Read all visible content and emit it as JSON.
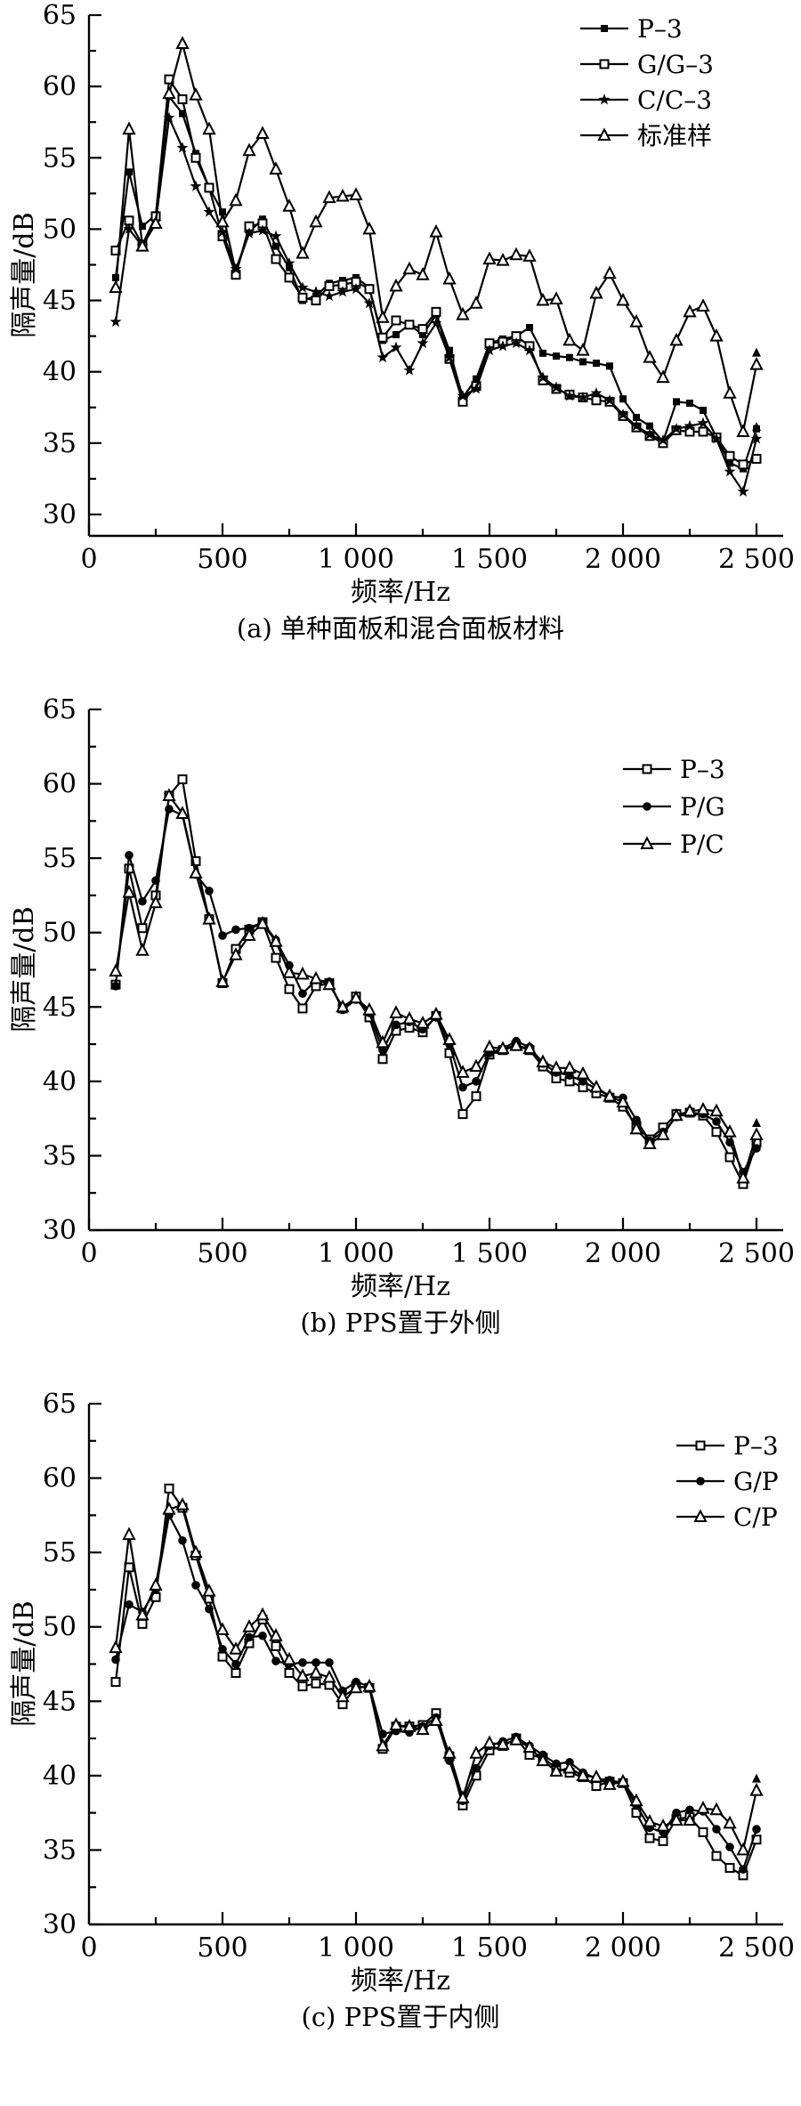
{
  "figure": {
    "ylabel": "隔声量/dB",
    "xlabel": "频率/Hz"
  },
  "chart_data": [
    {
      "id": "a",
      "type": "line",
      "title": "(a) 单种面板和混合面板材料",
      "xlabel": "频率/Hz",
      "ylabel": "隔声量/dB",
      "xlim": [
        0,
        2600
      ],
      "ylim": [
        30,
        65
      ],
      "y_axis_floor": 28.5,
      "y_tick_step": 5,
      "y_minor_step": 2.5,
      "y_tick_labels": [
        "65",
        "60",
        "55",
        "50",
        "45",
        "40",
        "35",
        "30"
      ],
      "x_tick_hz": [
        0,
        250,
        500,
        750,
        1000,
        1250,
        1500,
        1750,
        2000,
        2250,
        2500
      ],
      "x_label_hz": [
        0,
        500,
        1000,
        1500,
        2000,
        2500
      ],
      "x_tick_labels": [
        "0",
        "500",
        "1 000",
        "1 500",
        "2 000",
        "2 500"
      ],
      "grid": false,
      "legend_position": "top-right-inside",
      "x": [
        100,
        150,
        200,
        250,
        300,
        350,
        400,
        450,
        500,
        550,
        600,
        650,
        700,
        750,
        800,
        850,
        900,
        950,
        1000,
        1050,
        1100,
        1150,
        1200,
        1250,
        1300,
        1350,
        1400,
        1450,
        1500,
        1550,
        1600,
        1650,
        1700,
        1750,
        1800,
        1850,
        1900,
        1950,
        2000,
        2050,
        2100,
        2150,
        2200,
        2250,
        2300,
        2350,
        2400,
        2450,
        2500
      ],
      "series": [
        {
          "name": "P–3",
          "marker": "square-filled",
          "end_arrow": false,
          "values": [
            46.6,
            54.0,
            50.2,
            51.0,
            59.3,
            58.1,
            55.3,
            52.9,
            51.2,
            47.0,
            49.8,
            50.7,
            48.8,
            47.3,
            45.0,
            45.3,
            46.2,
            46.4,
            46.6,
            45.9,
            42.2,
            42.6,
            43.3,
            42.6,
            44.0,
            41.5,
            38.2,
            39.5,
            42.0,
            42.3,
            42.5,
            43.1,
            41.3,
            41.1,
            41.0,
            40.7,
            40.6,
            40.4,
            38.1,
            36.8,
            36.2,
            35.1,
            37.9,
            37.8,
            37.3,
            35.4,
            33.6,
            33.2,
            36.0
          ]
        },
        {
          "name": "G/G–3",
          "marker": "square-open",
          "end_arrow": false,
          "values": [
            48.5,
            50.6,
            48.9,
            50.9,
            60.5,
            59.1,
            55.0,
            52.9,
            49.5,
            46.8,
            50.2,
            50.4,
            47.9,
            46.6,
            45.2,
            45.0,
            46.0,
            46.1,
            46.3,
            45.8,
            42.4,
            43.6,
            43.3,
            43.0,
            44.2,
            40.9,
            37.9,
            39.0,
            42.0,
            42.1,
            42.5,
            41.8,
            39.4,
            38.8,
            38.4,
            38.2,
            38.0,
            37.9,
            36.9,
            36.1,
            35.5,
            35.0,
            35.9,
            35.8,
            35.8,
            35.4,
            34.1,
            33.5,
            33.9
          ]
        },
        {
          "name": "C/C–3",
          "marker": "star-filled",
          "end_arrow": true,
          "values": [
            43.5,
            50.0,
            48.8,
            50.5,
            57.8,
            55.7,
            53.0,
            51.2,
            49.8,
            47.2,
            49.7,
            49.9,
            49.5,
            47.6,
            45.9,
            45.6,
            45.3,
            45.6,
            45.8,
            44.8,
            41.0,
            41.7,
            40.1,
            42.0,
            43.4,
            41.0,
            38.3,
            38.8,
            41.5,
            41.8,
            42.0,
            41.5,
            39.6,
            38.9,
            38.3,
            38.2,
            38.5,
            38.0,
            37.0,
            36.2,
            35.6,
            35.2,
            36.0,
            36.2,
            36.4,
            35.3,
            33.0,
            31.6,
            35.3
          ]
        },
        {
          "name": "标准样",
          "marker": "triangle-open",
          "end_arrow": true,
          "values": [
            45.9,
            57.0,
            48.8,
            50.4,
            59.5,
            63.0,
            59.4,
            57.0,
            50.5,
            52.0,
            55.5,
            56.7,
            54.2,
            51.6,
            48.3,
            50.5,
            52.2,
            52.3,
            52.4,
            50.0,
            43.8,
            46.0,
            47.2,
            46.8,
            49.8,
            46.5,
            44.0,
            44.8,
            47.9,
            47.8,
            48.2,
            48.1,
            45.0,
            45.1,
            42.2,
            41.5,
            45.5,
            46.9,
            45.0,
            43.5,
            41.0,
            39.6,
            42.2,
            44.2,
            44.6,
            42.5,
            38.5,
            35.8,
            40.5
          ]
        }
      ]
    },
    {
      "id": "b",
      "type": "line",
      "title": "(b) PPS置于外侧",
      "xlabel": "频率/Hz",
      "ylabel": "隔声量/dB",
      "xlim": [
        0,
        2600
      ],
      "ylim": [
        30,
        65
      ],
      "y_axis_floor": 30,
      "y_tick_step": 5,
      "y_minor_step": 2.5,
      "y_tick_labels": [
        "65",
        "60",
        "55",
        "50",
        "45",
        "40",
        "35",
        "30"
      ],
      "x_tick_hz": [
        0,
        250,
        500,
        750,
        1000,
        1250,
        1500,
        1750,
        2000,
        2250,
        2500
      ],
      "x_label_hz": [
        0,
        500,
        1000,
        1500,
        2000,
        2500
      ],
      "x_tick_labels": [
        "0",
        "500",
        "1 000",
        "1 500",
        "2 000",
        "2 500"
      ],
      "grid": false,
      "legend_position": "top-right-inside",
      "x": [
        100,
        150,
        200,
        250,
        300,
        350,
        400,
        450,
        500,
        550,
        600,
        650,
        700,
        750,
        800,
        850,
        900,
        950,
        1000,
        1050,
        1100,
        1150,
        1200,
        1250,
        1300,
        1350,
        1400,
        1450,
        1500,
        1550,
        1600,
        1650,
        1700,
        1750,
        1800,
        1850,
        1900,
        1950,
        2000,
        2050,
        2100,
        2150,
        2200,
        2250,
        2300,
        2350,
        2400,
        2450,
        2500
      ],
      "series": [
        {
          "name": "P–3",
          "marker": "square-open",
          "end_arrow": false,
          "values": [
            46.5,
            54.3,
            50.3,
            52.5,
            59.2,
            60.3,
            54.8,
            50.9,
            46.6,
            48.9,
            50.2,
            50.7,
            48.3,
            46.2,
            44.9,
            46.4,
            46.6,
            44.9,
            45.7,
            44.3,
            41.5,
            43.4,
            43.6,
            43.3,
            44.4,
            41.9,
            37.8,
            39.0,
            41.8,
            42.1,
            42.4,
            42.1,
            41.0,
            40.2,
            40.0,
            39.6,
            39.2,
            38.9,
            38.3,
            37.0,
            36.1,
            36.9,
            37.8,
            37.9,
            37.7,
            36.6,
            34.9,
            33.1,
            35.9
          ]
        },
        {
          "name": "P/G",
          "marker": "circle-filled",
          "end_arrow": false,
          "values": [
            46.4,
            55.2,
            52.1,
            53.5,
            58.3,
            57.9,
            53.9,
            52.8,
            49.8,
            50.2,
            50.3,
            50.7,
            49.5,
            47.8,
            45.9,
            46.8,
            46.7,
            44.8,
            45.5,
            44.6,
            42.1,
            43.8,
            44.0,
            43.5,
            44.3,
            42.5,
            39.6,
            40.0,
            41.9,
            42.2,
            42.7,
            42.3,
            41.2,
            40.6,
            40.4,
            40.0,
            39.5,
            39.0,
            38.9,
            37.4,
            36.0,
            36.6,
            37.6,
            37.9,
            37.8,
            37.3,
            35.9,
            33.9,
            35.5
          ]
        },
        {
          "name": "P/C",
          "marker": "triangle-open",
          "end_arrow": true,
          "values": [
            47.4,
            52.7,
            48.8,
            52.0,
            59.2,
            58.0,
            54.0,
            50.9,
            46.7,
            48.5,
            49.8,
            50.6,
            49.4,
            47.3,
            47.2,
            46.9,
            46.5,
            45.0,
            45.6,
            44.8,
            42.6,
            44.6,
            44.2,
            43.9,
            44.5,
            42.8,
            40.6,
            41.0,
            42.3,
            42.2,
            42.4,
            42.2,
            41.3,
            40.9,
            40.9,
            40.5,
            39.6,
            39.0,
            38.6,
            36.8,
            35.8,
            36.4,
            37.7,
            38.0,
            38.1,
            38.0,
            36.6,
            33.5,
            36.4
          ]
        }
      ]
    },
    {
      "id": "c",
      "type": "line",
      "title": "(c) PPS置于内侧",
      "xlabel": "频率/Hz",
      "ylabel": "隔声量/dB",
      "xlim": [
        0,
        2600
      ],
      "ylim": [
        30,
        65
      ],
      "y_axis_floor": 30,
      "y_tick_step": 5,
      "y_minor_step": 2.5,
      "y_tick_labels": [
        "65",
        "60",
        "55",
        "50",
        "45",
        "40",
        "35",
        "30"
      ],
      "x_tick_hz": [
        0,
        250,
        500,
        750,
        1000,
        1250,
        1500,
        1750,
        2000,
        2250,
        2500
      ],
      "x_label_hz": [
        0,
        500,
        1000,
        1500,
        2000,
        2500
      ],
      "x_tick_labels": [
        "0",
        "500",
        "1 000",
        "1 500",
        "2 000",
        "2 500"
      ],
      "grid": false,
      "legend_position": "top-right-inside",
      "x": [
        100,
        150,
        200,
        250,
        300,
        350,
        400,
        450,
        500,
        550,
        600,
        650,
        700,
        750,
        800,
        850,
        900,
        950,
        1000,
        1050,
        1100,
        1150,
        1200,
        1250,
        1300,
        1350,
        1400,
        1450,
        1500,
        1550,
        1600,
        1650,
        1700,
        1750,
        1800,
        1850,
        1900,
        1950,
        2000,
        2050,
        2100,
        2150,
        2200,
        2250,
        2300,
        2350,
        2400,
        2450,
        2500
      ],
      "series": [
        {
          "name": "P–3",
          "marker": "square-open",
          "end_arrow": false,
          "values": [
            46.3,
            54.0,
            50.2,
            52.0,
            59.3,
            58.0,
            54.8,
            51.9,
            48.0,
            46.9,
            48.9,
            50.5,
            48.7,
            46.9,
            46.0,
            46.2,
            46.1,
            44.8,
            46.0,
            45.9,
            41.8,
            43.3,
            43.3,
            43.4,
            44.2,
            41.3,
            38.0,
            40.0,
            41.7,
            42.0,
            42.5,
            41.4,
            41.2,
            40.5,
            40.2,
            39.9,
            39.3,
            39.6,
            39.5,
            37.5,
            35.8,
            35.6,
            37.1,
            37.2,
            36.2,
            34.6,
            33.8,
            33.3,
            35.7
          ]
        },
        {
          "name": "G/P",
          "marker": "circle-filled",
          "end_arrow": false,
          "values": [
            47.8,
            51.5,
            51.0,
            52.5,
            57.5,
            55.8,
            52.8,
            51.2,
            48.5,
            47.5,
            49.3,
            49.4,
            47.7,
            47.5,
            47.6,
            47.6,
            47.6,
            45.7,
            46.3,
            46.0,
            42.8,
            43.0,
            42.9,
            43.3,
            43.9,
            41.0,
            38.3,
            40.5,
            42.0,
            42.3,
            42.6,
            42.0,
            41.4,
            40.8,
            40.9,
            40.2,
            39.8,
            39.7,
            39.5,
            38.0,
            36.5,
            36.2,
            37.5,
            37.7,
            37.6,
            36.4,
            35.2,
            33.7,
            36.4
          ]
        },
        {
          "name": "C/P",
          "marker": "triangle-open",
          "end_arrow": true,
          "values": [
            48.6,
            56.2,
            50.8,
            52.8,
            57.9,
            58.2,
            55.0,
            52.4,
            49.8,
            48.5,
            50.0,
            50.8,
            49.4,
            47.8,
            46.7,
            46.9,
            46.6,
            45.3,
            45.9,
            46.0,
            42.0,
            43.4,
            43.3,
            43.1,
            43.7,
            41.5,
            38.5,
            41.5,
            42.2,
            42.1,
            42.4,
            41.9,
            41.0,
            40.3,
            40.5,
            40.0,
            39.9,
            39.4,
            39.6,
            38.3,
            36.9,
            36.6,
            37.0,
            37.0,
            37.8,
            37.7,
            36.8,
            35.0,
            39.0
          ]
        }
      ]
    }
  ]
}
